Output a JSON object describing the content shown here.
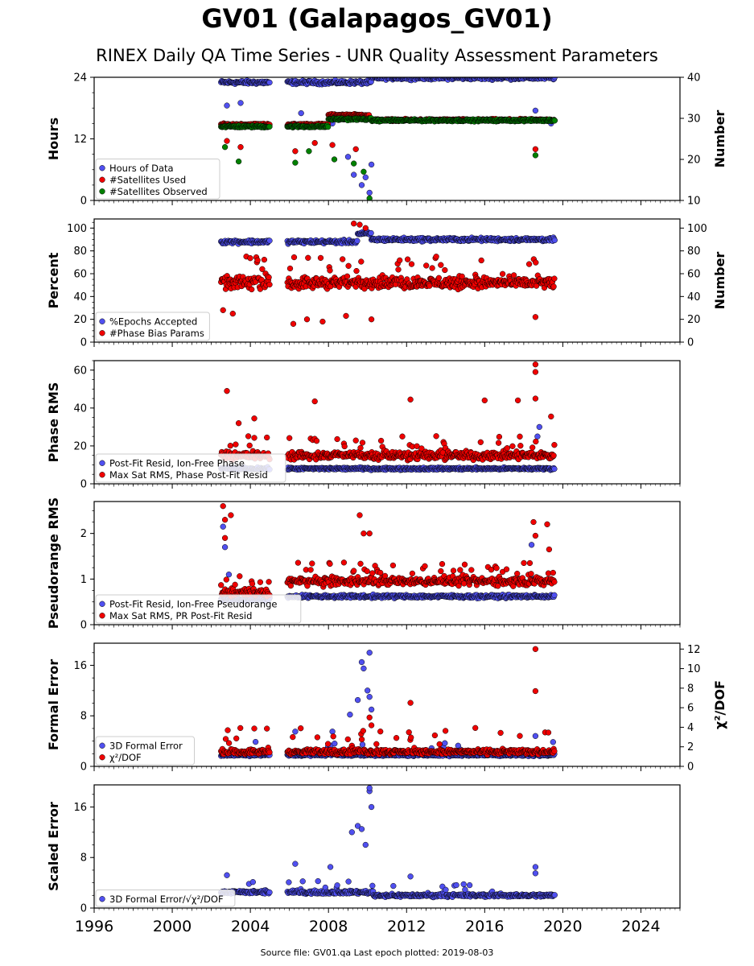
{
  "title": "GV01 (Galapagos_GV01)",
  "subtitle": "RINEX Daily QA Time Series - UNR Quality Assessment Parameters",
  "footer": "Source file: GV01.qa Last epoch plotted: 2019-08-03",
  "colors": {
    "blue": "#5050f0",
    "red": "#f00000",
    "green": "#008000",
    "edge": "#000000"
  },
  "chart_data": {
    "type": "scatter",
    "x_axis": {
      "range": [
        1996,
        2026
      ],
      "ticks": [
        1996,
        2000,
        2004,
        2008,
        2012,
        2016,
        2020,
        2024
      ],
      "tick_labels": [
        "1996",
        "2000",
        "2004",
        "2008",
        "2012",
        "2016",
        "2020",
        "2024"
      ]
    },
    "data_span": {
      "start": 2002.5,
      "gap": [
        2005.0,
        2005.9
      ],
      "end": 2019.59
    },
    "panels": [
      {
        "id": "hours",
        "ylabel": "Hours",
        "ylim": [
          0,
          24
        ],
        "yticks": [
          0,
          12,
          24
        ],
        "ylabel_right": "Number",
        "ylim_right": [
          10,
          40
        ],
        "yticks_right": [
          10,
          20,
          30,
          40
        ],
        "legend": [
          "Hours of Data",
          "#Satellites Used",
          "#Satellites Observed"
        ],
        "series": [
          {
            "name": "Hours of Data",
            "color": "#5050f0",
            "axis": "left",
            "segments": [
              [
                2002.5,
                2010.2,
                23.0
              ],
              [
                2010.2,
                2019.59,
                23.9
              ]
            ],
            "outliers": [
              [
                2002.8,
                18.5
              ],
              [
                2003.5,
                19.0
              ],
              [
                2006.6,
                17.0
              ],
              [
                2008.2,
                15.0
              ],
              [
                2009.0,
                8.5
              ],
              [
                2009.3,
                5.0
              ],
              [
                2009.7,
                3.0
              ],
              [
                2009.9,
                4.5
              ],
              [
                2010.1,
                1.5
              ],
              [
                2010.2,
                7.0
              ],
              [
                2018.6,
                17.5
              ],
              [
                2019.4,
                15.0
              ]
            ]
          },
          {
            "name": "#Satellites Used",
            "color": "#f00000",
            "axis": "right",
            "segments": [
              [
                2002.5,
                2008.0,
                28.5
              ],
              [
                2008.0,
                2010.1,
                30.8
              ],
              [
                2010.2,
                2019.59,
                29.6
              ]
            ],
            "outliers": [
              [
                2002.8,
                24.5
              ],
              [
                2003.5,
                23.0
              ],
              [
                2006.3,
                22.0
              ],
              [
                2007.3,
                24.0
              ],
              [
                2008.2,
                23.5
              ],
              [
                2009.4,
                22.5
              ],
              [
                2018.6,
                22.5
              ]
            ]
          },
          {
            "name": "#Satellites Observed",
            "color": "#008000",
            "axis": "right",
            "segments": [
              [
                2002.5,
                2008.0,
                28.0
              ],
              [
                2008.0,
                2010.2,
                29.8
              ],
              [
                2010.2,
                2019.59,
                29.5
              ]
            ],
            "outliers": [
              [
                2002.7,
                23.0
              ],
              [
                2003.4,
                19.5
              ],
              [
                2006.3,
                19.2
              ],
              [
                2007.0,
                22.0
              ],
              [
                2008.3,
                20.0
              ],
              [
                2009.3,
                19.0
              ],
              [
                2009.8,
                17.0
              ],
              [
                2010.1,
                10.5
              ],
              [
                2018.6,
                21.0
              ]
            ]
          }
        ]
      },
      {
        "id": "percent",
        "ylabel": "Percent",
        "ylim": [
          0,
          108
        ],
        "yticks": [
          0,
          20,
          40,
          60,
          80,
          100
        ],
        "ylabel_right": "Number",
        "ylim_right": [
          0,
          108
        ],
        "yticks_right": [
          0,
          20,
          40,
          60,
          80,
          100
        ],
        "legend": [
          "%Epochs Accepted",
          "#Phase Bias Params"
        ],
        "series": [
          {
            "name": "%Epochs Accepted",
            "color": "#5050f0",
            "axis": "left",
            "segments": [
              [
                2002.5,
                2009.5,
                88
              ],
              [
                2009.5,
                2010.2,
                95
              ],
              [
                2010.2,
                2019.59,
                90
              ]
            ],
            "outliers": []
          },
          {
            "name": "#Phase Bias Params",
            "color": "#f00000",
            "axis": "right",
            "segments": [
              [
                2002.5,
                2019.59,
                52
              ]
            ],
            "outliers": [
              [
                2002.6,
                28
              ],
              [
                2003.1,
                25
              ],
              [
                2006.2,
                16
              ],
              [
                2006.9,
                20
              ],
              [
                2007.7,
                18
              ],
              [
                2008.9,
                23
              ],
              [
                2010.2,
                20
              ],
              [
                2018.6,
                22
              ],
              [
                2009.3,
                104
              ],
              [
                2009.6,
                103
              ],
              [
                2009.9,
                100
              ]
            ]
          }
        ]
      },
      {
        "id": "phase",
        "ylabel": "Phase RMS",
        "ylim": [
          0,
          65
        ],
        "yticks": [
          0,
          20,
          40,
          60
        ],
        "legend": [
          "Post-Fit Resid, Ion-Free Phase",
          "Max Sat RMS, Phase Post-Fit Resid"
        ],
        "series": [
          {
            "name": "Post-Fit Resid, Ion-Free Phase",
            "color": "#5050f0",
            "axis": "left",
            "segments": [
              [
                2002.5,
                2019.59,
                8.0
              ]
            ],
            "outliers": [
              [
                2018.7,
                25.0
              ],
              [
                2018.8,
                30.0
              ]
            ]
          },
          {
            "name": "Max Sat RMS, Phase Post-Fit Resid",
            "color": "#f00000",
            "axis": "left",
            "segments": [
              [
                2002.5,
                2019.59,
                15.0
              ]
            ],
            "outliers": [
              [
                2002.8,
                49
              ],
              [
                2003.4,
                32
              ],
              [
                2004.2,
                34.5
              ],
              [
                2007.3,
                43.5
              ],
              [
                2012.2,
                44.5
              ],
              [
                2016.0,
                44
              ],
              [
                2017.7,
                44
              ],
              [
                2018.6,
                45
              ],
              [
                2018.6,
                59
              ],
              [
                2018.6,
                63
              ],
              [
                2019.4,
                35.5
              ]
            ]
          }
        ]
      },
      {
        "id": "pseudorange",
        "ylabel": "Pseudorange RMS",
        "ylim": [
          0,
          2.7
        ],
        "yticks": [
          0,
          1,
          2
        ],
        "legend": [
          "Post-Fit Resid, Ion-Free Pseudorange",
          "Max Sat RMS, PR Post-Fit Resid"
        ],
        "series": [
          {
            "name": "Post-Fit Resid, Ion-Free Pseudorange",
            "color": "#5050f0",
            "axis": "left",
            "segments": [
              [
                2002.5,
                2005.0,
                0.55
              ],
              [
                2005.9,
                2019.59,
                0.62
              ]
            ],
            "outliers": [
              [
                2002.6,
                2.15
              ],
              [
                2002.7,
                1.7
              ],
              [
                2002.9,
                1.1
              ],
              [
                2018.4,
                1.75
              ],
              [
                2018.5,
                1.0
              ]
            ]
          },
          {
            "name": "Max Sat RMS, PR Post-Fit Resid",
            "color": "#f00000",
            "axis": "left",
            "segments": [
              [
                2002.5,
                2005.0,
                0.7
              ],
              [
                2005.9,
                2019.59,
                0.95
              ]
            ],
            "outliers": [
              [
                2002.6,
                2.6
              ],
              [
                2002.7,
                2.3
              ],
              [
                2003.0,
                2.4
              ],
              [
                2002.7,
                1.9
              ],
              [
                2009.6,
                2.4
              ],
              [
                2009.8,
                2.0
              ],
              [
                2010.1,
                2.0
              ],
              [
                2018.5,
                2.25
              ],
              [
                2018.6,
                1.95
              ],
              [
                2019.2,
                2.2
              ],
              [
                2019.3,
                1.65
              ]
            ]
          }
        ]
      },
      {
        "id": "formal",
        "ylabel": "Formal Error",
        "ylim": [
          0,
          19.5
        ],
        "yticks": [
          0,
          8,
          16
        ],
        "ylabel_right": "χ²/DOF",
        "ylim_right": [
          0,
          12.6
        ],
        "yticks_right": [
          0,
          2,
          4,
          6,
          8,
          10,
          12
        ],
        "legend": [
          "3D Formal Error",
          "χ²/DOF"
        ],
        "series": [
          {
            "name": "3D Formal Error",
            "color": "#5050f0",
            "axis": "left",
            "segments": [
              [
                2002.5,
                2019.59,
                1.8
              ]
            ],
            "outliers": [
              [
                2009.1,
                8.2
              ],
              [
                2009.5,
                10.5
              ],
              [
                2009.7,
                16.5
              ],
              [
                2009.8,
                15.5
              ],
              [
                2010.0,
                12.0
              ],
              [
                2010.1,
                18.0
              ],
              [
                2010.1,
                11.0
              ],
              [
                2010.2,
                9.0
              ],
              [
                2006.3,
                5.5
              ],
              [
                2008.2,
                5.5
              ],
              [
                2018.6,
                4.8
              ]
            ]
          },
          {
            "name": "χ²/DOF",
            "color": "#f00000",
            "axis": "right",
            "segments": [
              [
                2002.5,
                2019.59,
                1.5
              ]
            ],
            "outliers": [
              [
                2012.2,
                6.5
              ],
              [
                2018.6,
                12.0
              ],
              [
                2018.6,
                7.7
              ],
              [
                2010.1,
                5.0
              ],
              [
                2010.2,
                4.2
              ]
            ]
          }
        ]
      },
      {
        "id": "scaled",
        "ylabel": "Scaled Error",
        "ylim": [
          0,
          19.5
        ],
        "yticks": [
          0,
          8,
          16
        ],
        "legend": [
          "3D Formal Error/√χ²/DOF"
        ],
        "series": [
          {
            "name": "3D Formal Error/√χ²/DOF",
            "color": "#5050f0",
            "axis": "left",
            "segments": [
              [
                2002.5,
                2010.3,
                2.5
              ],
              [
                2010.3,
                2019.59,
                2.0
              ]
            ],
            "outliers": [
              [
                2002.8,
                5.2
              ],
              [
                2006.3,
                7.0
              ],
              [
                2008.1,
                6.5
              ],
              [
                2009.2,
                12.0
              ],
              [
                2009.5,
                13.0
              ],
              [
                2009.7,
                12.5
              ],
              [
                2009.9,
                10.0
              ],
              [
                2010.1,
                18.5
              ],
              [
                2010.1,
                19.0
              ],
              [
                2010.2,
                16.0
              ],
              [
                2012.2,
                5.0
              ],
              [
                2018.6,
                6.5
              ],
              [
                2018.6,
                5.5
              ]
            ]
          }
        ]
      }
    ]
  }
}
